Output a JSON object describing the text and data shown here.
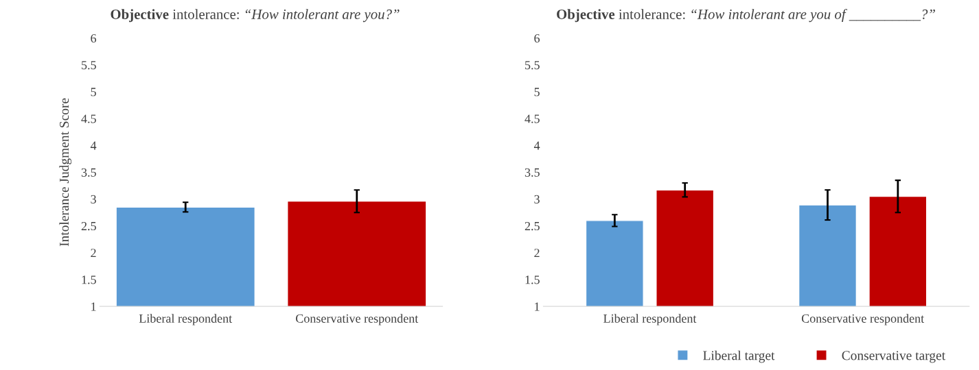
{
  "chart_data": [
    {
      "type": "bar",
      "title": "Objective intolerance: “How intolerant are you?”",
      "ylabel": "Intolerance Judgment Score",
      "categories": [
        "Liberal respondent",
        "Conservative respondent"
      ],
      "values": [
        2.85,
        2.96
      ],
      "colors": [
        "#5b9bd5",
        "#c00000"
      ],
      "errors": [
        0.09,
        0.21
      ],
      "ylim": [
        1,
        6
      ],
      "yticks": [
        1,
        1.5,
        2,
        2.5,
        3,
        3.5,
        4,
        4.5,
        5,
        5.5,
        6
      ],
      "grid": false
    },
    {
      "type": "bar",
      "title": "Objective intolerance: “How intolerant are you of __________?”",
      "categories": [
        "Liberal respondent",
        "Conservative respondent"
      ],
      "series": [
        {
          "name": "Liberal target",
          "color": "#5b9bd5",
          "values": [
            2.6,
            2.89
          ],
          "errors": [
            0.11,
            0.28
          ]
        },
        {
          "name": "Conservative target",
          "color": "#c00000",
          "values": [
            3.17,
            3.05
          ],
          "errors": [
            0.13,
            0.3
          ]
        }
      ],
      "ylim": [
        1,
        6
      ],
      "yticks": [
        1,
        1.5,
        2,
        2.5,
        3,
        3.5,
        4,
        4.5,
        5,
        5.5,
        6
      ],
      "grid": false,
      "legend": "bottom"
    }
  ]
}
